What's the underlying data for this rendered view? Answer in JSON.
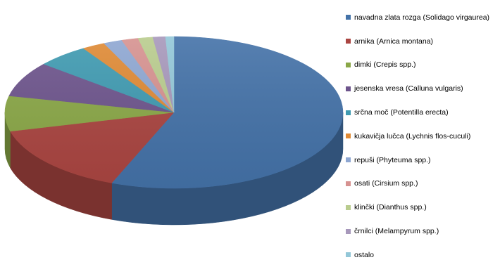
{
  "chart_data": {
    "type": "pie",
    "style": "3d",
    "legend_position": "right",
    "labels": [
      "navadna zlata rozga (Solidago virgaurea)",
      "arnika (Arnica montana)",
      "dimki (Crepis spp.)",
      "jesenska vresa (Calluna vulgaris)",
      "srčna moč (Potentilla erecta)",
      "kukavičja lučca (Lychnis flos-cuculi)",
      "repuši (Phyteuma spp.)",
      "osati (Cirsium spp.)",
      "klinčki (Dianthus spp.)",
      "črnilci (Melampyrum spp.)",
      "ostalo"
    ],
    "values": [
      56,
      15,
      7.5,
      7.5,
      5,
      2.2,
      1.8,
      1.6,
      1.4,
      1.2,
      0.8
    ],
    "colors": [
      "#4472A8",
      "#AA4541",
      "#8AA747",
      "#6D548C",
      "#3F9AB1",
      "#DF8A35",
      "#8EA7D2",
      "#D69290",
      "#B9CC8E",
      "#A798BB",
      "#93C7D8"
    ]
  }
}
